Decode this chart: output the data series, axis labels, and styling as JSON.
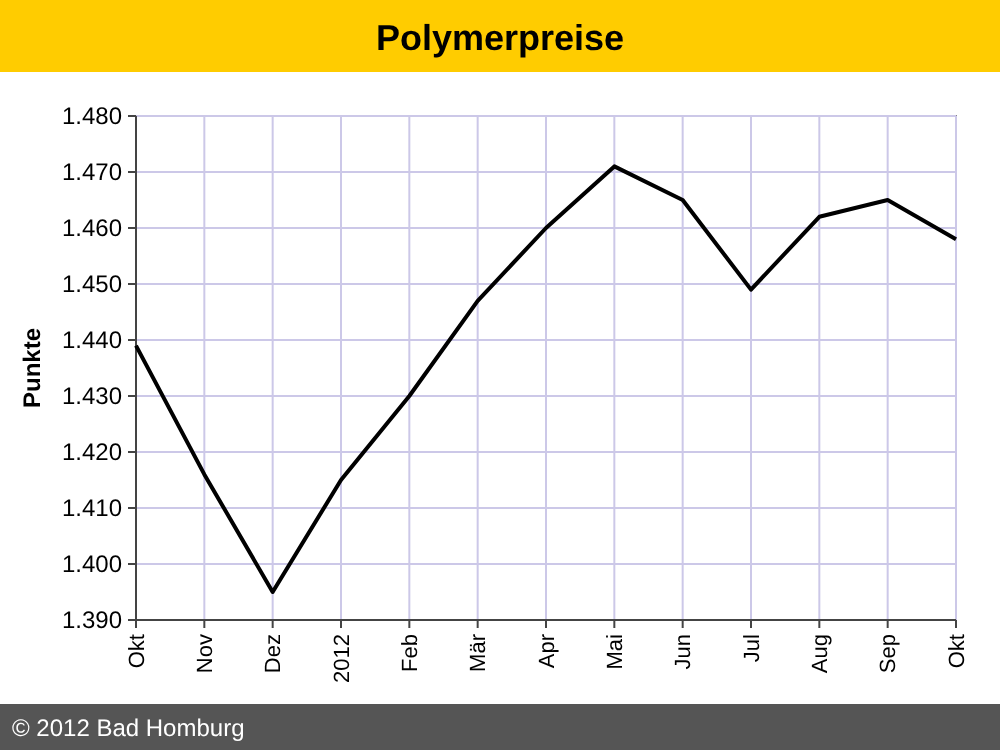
{
  "chart_data": {
    "type": "line",
    "title": "Polymerpreise",
    "ylabel": "Punkte",
    "annotations": [
      "© 2012 Bad Homburg"
    ],
    "categories": [
      "Okt",
      "Nov",
      "Dez",
      "2012",
      "Feb",
      "Mär",
      "Apr",
      "Mai",
      "Jun",
      "Jul",
      "Aug",
      "Sep",
      "Okt"
    ],
    "series": [
      {
        "color": "#000000",
        "values": [
          1.439,
          1.416,
          1.395,
          1.415,
          1.43,
          1.447,
          1.46,
          1.471,
          1.465,
          1.449,
          1.462,
          1.465,
          1.458
        ]
      }
    ],
    "ylim": [
      1.39,
      1.48
    ],
    "yticks": [
      {
        "value": 1.39,
        "label": "1.390"
      },
      {
        "value": 1.4,
        "label": "1.400"
      },
      {
        "value": 1.41,
        "label": "1.410"
      },
      {
        "value": 1.42,
        "label": "1.420"
      },
      {
        "value": 1.43,
        "label": "1.430"
      },
      {
        "value": 1.44,
        "label": "1.440"
      },
      {
        "value": 1.45,
        "label": "1.450"
      },
      {
        "value": 1.46,
        "label": "1.460"
      },
      {
        "value": 1.47,
        "label": "1.470"
      },
      {
        "value": 1.48,
        "label": "1.480"
      }
    ],
    "grid": true,
    "marker": "none",
    "line_style": "solid"
  }
}
